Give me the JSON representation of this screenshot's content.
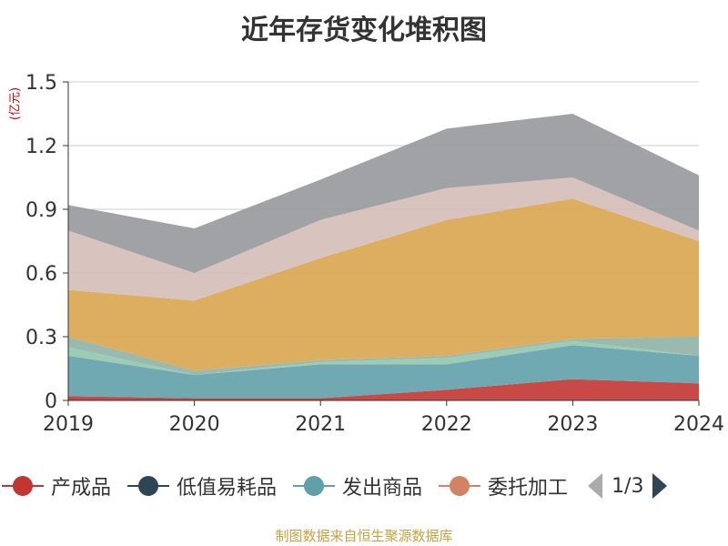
{
  "title": "近年存货变化堆积图",
  "unit_label": "(亿元)",
  "source": "制图数据来自恒生聚源数据库",
  "legend": {
    "items": [
      {
        "label": "产成品",
        "color": "#c23531"
      },
      {
        "label": "低值易耗品",
        "color": "#2f4554"
      },
      {
        "label": "发出商品",
        "color": "#61a0a8"
      },
      {
        "label": "委托加工",
        "color": "#d48265"
      }
    ],
    "page": "1/3"
  },
  "chart_data": {
    "type": "area",
    "stacked": true,
    "title": "近年存货变化堆积图",
    "ylabel": "(亿元)",
    "x": [
      "2019",
      "2020",
      "2021",
      "2022",
      "2023",
      "2024"
    ],
    "ylim": [
      0,
      1.5
    ],
    "yticks": [
      0,
      0.3,
      0.6,
      0.9,
      1.2,
      1.5
    ],
    "ytick_labels": [
      "0",
      "0.3",
      "0.6",
      "0.9",
      "1.2",
      "1.5"
    ],
    "grid": true,
    "series": [
      {
        "name": "产成品",
        "color": "#c23531",
        "values": [
          0.02,
          0.01,
          0.01,
          0.05,
          0.1,
          0.08
        ]
      },
      {
        "color": "#61a0a8",
        "values": [
          0.19,
          0.11,
          0.16,
          0.12,
          0.16,
          0.13
        ]
      },
      {
        "color": "#91c7ae",
        "values": [
          0.04,
          0.0,
          0.01,
          0.03,
          0.02,
          0.0
        ]
      },
      {
        "color": "#8fb3a6",
        "values": [
          0.05,
          0.02,
          0.01,
          0.01,
          0.01,
          0.09
        ]
      },
      {
        "color": "#d9a54f",
        "values": [
          0.22,
          0.33,
          0.48,
          0.64,
          0.66,
          0.45
        ]
      },
      {
        "color": "#d4bdb8",
        "values": [
          0.28,
          0.13,
          0.18,
          0.15,
          0.1,
          0.05
        ]
      },
      {
        "color": "#97989c",
        "values": [
          0.12,
          0.21,
          0.19,
          0.28,
          0.3,
          0.26
        ]
      }
    ]
  }
}
